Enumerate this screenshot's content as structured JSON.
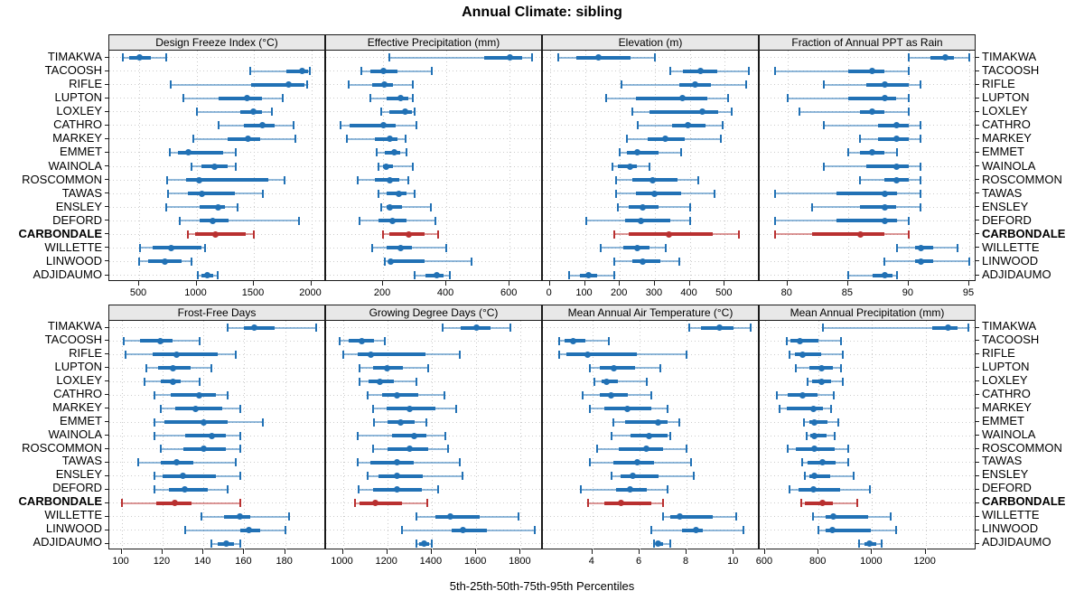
{
  "title": "Annual Climate: sibling",
  "xlab": "5th-25th-50th-75th-95th Percentiles",
  "highlight_site": "CARBONDALE",
  "colors": {
    "series": "#2171b5",
    "highlight": "#b93030",
    "grid": "#c9c9c9",
    "strip_bg": "#e8e8e8",
    "border": "#1a1a1a"
  },
  "sites": [
    "TIMAKWA",
    "TACOOSH",
    "RIFLE",
    "LUPTON",
    "LOXLEY",
    "CATHRO",
    "MARKEY",
    "EMMET",
    "WAINOLA",
    "ROSCOMMON",
    "TAWAS",
    "ENSLEY",
    "DEFORD",
    "CARBONDALE",
    "WILLETTE",
    "LINWOOD",
    "ADJIDAUMO"
  ],
  "chart_data": {
    "type": "dotplot-percentile",
    "percentiles": [
      "5th",
      "25th",
      "50th",
      "75th",
      "95th"
    ],
    "layout": {
      "rows": 2,
      "cols": 4,
      "legend": "none",
      "grid": "dotted"
    },
    "panels": [
      {
        "title": "Design Freeze Index (°C)",
        "row": 1,
        "col": 1,
        "xlim": [
          240,
          2130
        ],
        "ticks": [
          500,
          1000,
          1500,
          2000
        ],
        "values": [
          [
            360,
            415,
            505,
            605,
            735
          ],
          [
            1470,
            1780,
            1920,
            1970,
            1990
          ],
          [
            775,
            1475,
            1800,
            1940,
            1965
          ],
          [
            885,
            1190,
            1440,
            1570,
            1750
          ],
          [
            1005,
            1385,
            1495,
            1575,
            1655
          ],
          [
            1190,
            1410,
            1575,
            1680,
            1850
          ],
          [
            975,
            1270,
            1450,
            1555,
            1860
          ],
          [
            770,
            835,
            925,
            1230,
            1345
          ],
          [
            955,
            1040,
            1155,
            1270,
            1345
          ],
          [
            745,
            910,
            1025,
            1630,
            1770
          ],
          [
            750,
            925,
            1050,
            1335,
            1580
          ],
          [
            735,
            1025,
            1190,
            1245,
            1360
          ],
          [
            855,
            1025,
            1140,
            1280,
            1895
          ],
          [
            925,
            990,
            1165,
            1430,
            1500
          ],
          [
            510,
            615,
            780,
            1040,
            1075
          ],
          [
            500,
            580,
            720,
            870,
            955
          ],
          [
            1010,
            1045,
            1095,
            1150,
            1185
          ]
        ]
      },
      {
        "title": "Effective Precipitation (mm)",
        "row": 1,
        "col": 2,
        "xlim": [
          20,
          705
        ],
        "ticks": [
          200,
          400,
          600
        ],
        "values": [
          [
            220,
            520,
            600,
            640,
            670
          ],
          [
            130,
            160,
            200,
            245,
            355
          ],
          [
            90,
            165,
            205,
            230,
            295
          ],
          [
            160,
            210,
            255,
            280,
            295
          ],
          [
            195,
            220,
            270,
            290,
            300
          ],
          [
            65,
            95,
            200,
            240,
            305
          ],
          [
            85,
            175,
            220,
            245,
            270
          ],
          [
            180,
            205,
            235,
            255,
            275
          ],
          [
            185,
            200,
            210,
            230,
            295
          ],
          [
            120,
            175,
            220,
            250,
            280
          ],
          [
            185,
            210,
            250,
            275,
            300
          ],
          [
            195,
            210,
            220,
            260,
            350
          ],
          [
            125,
            185,
            230,
            275,
            365
          ],
          [
            200,
            220,
            280,
            330,
            375
          ],
          [
            165,
            210,
            255,
            290,
            400
          ],
          [
            205,
            220,
            225,
            330,
            480
          ],
          [
            300,
            335,
            370,
            390,
            410
          ]
        ]
      },
      {
        "title": "Elevation (m)",
        "row": 1,
        "col": 3,
        "xlim": [
          -20,
          600
        ],
        "ticks": [
          0,
          100,
          200,
          300,
          400,
          500
        ],
        "values": [
          [
            25,
            75,
            140,
            230,
            300
          ],
          [
            345,
            380,
            430,
            480,
            570
          ],
          [
            205,
            370,
            415,
            460,
            560
          ],
          [
            160,
            245,
            380,
            450,
            510
          ],
          [
            235,
            285,
            435,
            480,
            520
          ],
          [
            250,
            350,
            395,
            445,
            495
          ],
          [
            220,
            280,
            330,
            385,
            490
          ],
          [
            200,
            220,
            250,
            310,
            375
          ],
          [
            180,
            195,
            230,
            250,
            285
          ],
          [
            190,
            235,
            295,
            365,
            425
          ],
          [
            190,
            245,
            300,
            375,
            470
          ],
          [
            195,
            225,
            265,
            310,
            400
          ],
          [
            105,
            215,
            260,
            345,
            400
          ],
          [
            185,
            225,
            340,
            465,
            540
          ],
          [
            145,
            210,
            250,
            285,
            330
          ],
          [
            185,
            235,
            265,
            315,
            370
          ],
          [
            55,
            85,
            110,
            135,
            185
          ]
        ]
      },
      {
        "title": "Fraction of Annual PPT as Rain",
        "row": 1,
        "col": 4,
        "xlim": [
          77.7,
          95.6
        ],
        "ticks": [
          80,
          85,
          90,
          95
        ],
        "values": [
          [
            90,
            91.8,
            93,
            93.7,
            95
          ],
          [
            79,
            85,
            87,
            88,
            90
          ],
          [
            83,
            86.5,
            88,
            90,
            91
          ],
          [
            80,
            85,
            88,
            89,
            90
          ],
          [
            81,
            86,
            87,
            88,
            90
          ],
          [
            83,
            87.5,
            89,
            90,
            91
          ],
          [
            86,
            87.5,
            89,
            90,
            91
          ],
          [
            85,
            86,
            87,
            88,
            89
          ],
          [
            83,
            86.5,
            89,
            90,
            91
          ],
          [
            86,
            88,
            89,
            90,
            91
          ],
          [
            79,
            84,
            88,
            89,
            91
          ],
          [
            82,
            86,
            88,
            89,
            91
          ],
          [
            79,
            84,
            88,
            89,
            90
          ],
          [
            79,
            82,
            86,
            88,
            90
          ],
          [
            89,
            90.5,
            91,
            92,
            94
          ],
          [
            88,
            90.5,
            91,
            92,
            95
          ],
          [
            85,
            87,
            88,
            88.7,
            89
          ]
        ]
      },
      {
        "title": "Frost-Free Days",
        "row": 2,
        "col": 1,
        "xlim": [
          94,
          200
        ],
        "ticks": [
          100,
          120,
          140,
          160,
          180
        ],
        "values": [
          [
            152,
            160,
            165,
            175,
            195
          ],
          [
            101,
            109,
            119,
            125,
            138
          ],
          [
            102,
            115,
            127,
            147,
            156
          ],
          [
            112,
            118,
            125,
            134,
            144
          ],
          [
            111,
            119,
            125,
            129,
            138
          ],
          [
            116,
            124,
            138,
            146,
            152
          ],
          [
            119,
            126,
            136,
            149,
            158
          ],
          [
            116,
            121,
            140,
            152,
            169
          ],
          [
            116,
            131,
            144,
            151,
            158
          ],
          [
            119,
            130,
            140,
            151,
            158
          ],
          [
            108,
            119,
            127,
            135,
            156
          ],
          [
            116,
            120,
            130,
            146,
            158
          ],
          [
            116,
            123,
            131,
            142,
            152
          ],
          [
            100,
            117,
            126,
            134,
            158
          ],
          [
            139,
            150,
            158,
            163,
            182
          ],
          [
            131,
            158,
            162,
            168,
            180
          ],
          [
            144,
            147,
            151,
            155,
            158
          ]
        ]
      },
      {
        "title": "Growing Degree Days (°C)",
        "row": 2,
        "col": 2,
        "xlim": [
          925,
          1900
        ],
        "ticks": [
          1000,
          1200,
          1400,
          1600,
          1800
        ],
        "values": [
          [
            1450,
            1530,
            1600,
            1665,
            1755
          ],
          [
            985,
            1025,
            1085,
            1140,
            1190
          ],
          [
            1000,
            1065,
            1125,
            1370,
            1525
          ],
          [
            1075,
            1135,
            1200,
            1270,
            1385
          ],
          [
            1075,
            1115,
            1165,
            1230,
            1330
          ],
          [
            1110,
            1175,
            1245,
            1340,
            1455
          ],
          [
            1135,
            1195,
            1300,
            1415,
            1510
          ],
          [
            1140,
            1200,
            1260,
            1325,
            1375
          ],
          [
            1065,
            1220,
            1320,
            1375,
            1460
          ],
          [
            1135,
            1200,
            1300,
            1385,
            1475
          ],
          [
            1065,
            1125,
            1245,
            1320,
            1525
          ],
          [
            1110,
            1160,
            1245,
            1360,
            1540
          ],
          [
            1070,
            1135,
            1245,
            1355,
            1430
          ],
          [
            1055,
            1075,
            1145,
            1265,
            1380
          ],
          [
            1330,
            1415,
            1485,
            1615,
            1790
          ],
          [
            1265,
            1490,
            1540,
            1650,
            1865
          ],
          [
            1330,
            1345,
            1365,
            1390,
            1400
          ]
        ]
      },
      {
        "title": "Mean Annual Air Temperature (°C)",
        "row": 2,
        "col": 3,
        "xlim": [
          1.9,
          11.1
        ],
        "ticks": [
          4,
          6,
          8,
          10
        ],
        "values": [
          [
            8.1,
            8.6,
            9.4,
            10.0,
            10.7
          ],
          [
            2.6,
            2.8,
            3.2,
            3.7,
            4.7
          ],
          [
            2.6,
            2.9,
            3.8,
            5.9,
            8.0
          ],
          [
            3.9,
            4.3,
            4.9,
            5.8,
            6.9
          ],
          [
            4.1,
            4.4,
            4.6,
            5.1,
            6.3
          ],
          [
            3.6,
            4.3,
            4.8,
            5.5,
            6.5
          ],
          [
            3.9,
            4.5,
            5.5,
            6.5,
            7.2
          ],
          [
            4.9,
            5.4,
            6.8,
            7.2,
            7.7
          ],
          [
            4.8,
            5.6,
            6.4,
            7.2,
            7.3
          ],
          [
            4.2,
            5.1,
            6.3,
            7.0,
            8.0
          ],
          [
            3.9,
            4.9,
            5.9,
            6.6,
            8.2
          ],
          [
            4.8,
            5.2,
            5.7,
            6.8,
            8.3
          ],
          [
            3.5,
            5.0,
            5.6,
            6.3,
            7.2
          ],
          [
            3.8,
            4.5,
            5.2,
            6.5,
            7.0
          ],
          [
            7.0,
            7.3,
            7.7,
            9.1,
            10.1
          ],
          [
            6.5,
            7.8,
            8.4,
            8.7,
            10.4
          ],
          [
            6.6,
            6.7,
            6.8,
            7.0,
            7.3
          ]
        ]
      },
      {
        "title": "Mean Annual Precipitation (mm)",
        "row": 2,
        "col": 4,
        "xlim": [
          580,
          1390
        ],
        "ticks": [
          600,
          800,
          1000,
          1200
        ],
        "values": [
          [
            815,
            1225,
            1285,
            1320,
            1360
          ],
          [
            680,
            695,
            730,
            800,
            885
          ],
          [
            690,
            710,
            740,
            810,
            890
          ],
          [
            715,
            765,
            810,
            855,
            885
          ],
          [
            760,
            775,
            810,
            848,
            890
          ],
          [
            645,
            685,
            740,
            795,
            855
          ],
          [
            655,
            680,
            780,
            815,
            845
          ],
          [
            745,
            765,
            785,
            835,
            875
          ],
          [
            755,
            770,
            785,
            830,
            860
          ],
          [
            685,
            715,
            785,
            860,
            910
          ],
          [
            740,
            760,
            815,
            865,
            910
          ],
          [
            750,
            765,
            785,
            845,
            930
          ],
          [
            690,
            725,
            780,
            880,
            990
          ],
          [
            735,
            750,
            815,
            855,
            945
          ],
          [
            780,
            825,
            855,
            985,
            1070
          ],
          [
            800,
            825,
            850,
            995,
            1090
          ],
          [
            950,
            970,
            990,
            1015,
            1035
          ]
        ]
      }
    ]
  }
}
